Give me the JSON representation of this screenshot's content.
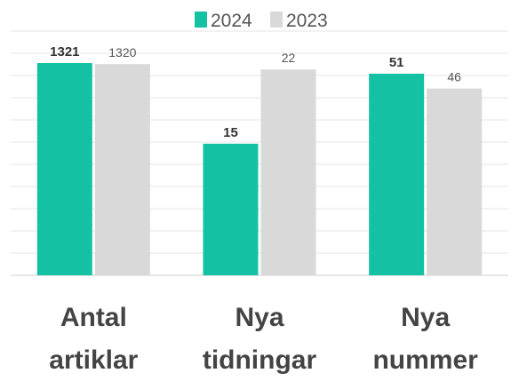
{
  "chart_data": {
    "type": "bar",
    "title": "",
    "xlabel": "",
    "ylabel": "",
    "legend_position": "top-center",
    "grid": true,
    "categories": [
      [
        "Antal",
        "artiklar"
      ],
      [
        "Nya",
        "tidningar"
      ],
      [
        "Nya",
        "nummer"
      ]
    ],
    "series": [
      {
        "name": "2024",
        "color": "#14c2a3",
        "label_style": "bold",
        "values": [
          1321,
          15,
          51
        ],
        "labels": [
          "1321",
          "15",
          "51"
        ],
        "relative_heights": [
          1.0,
          0.62,
          0.95
        ]
      },
      {
        "name": "2023",
        "color": "#d9d9d9",
        "label_style": "regular",
        "values": [
          1320,
          22,
          46
        ],
        "labels": [
          "1320",
          "22",
          "46"
        ],
        "relative_heights": [
          0.995,
          0.97,
          0.88
        ]
      }
    ]
  }
}
